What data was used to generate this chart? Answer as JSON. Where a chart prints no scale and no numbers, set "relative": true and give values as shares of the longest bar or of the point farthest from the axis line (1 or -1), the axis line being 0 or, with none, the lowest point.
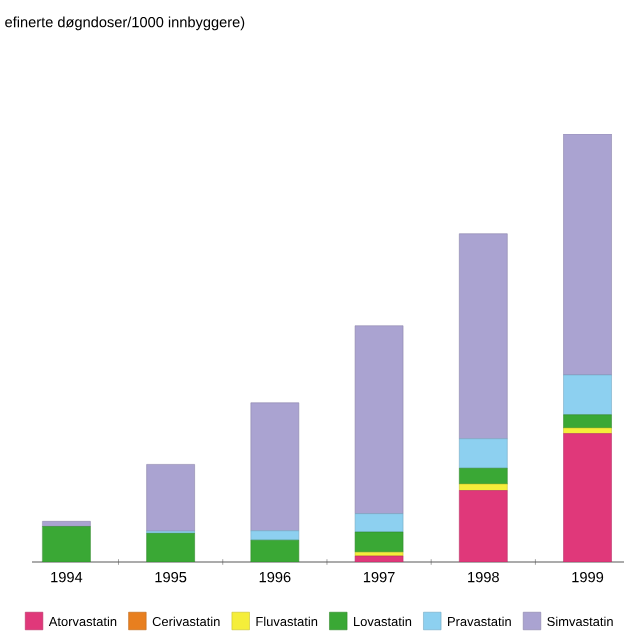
{
  "chart_data": {
    "type": "bar",
    "title": "efinerte døgndoser/1000 innbyggere)",
    "relative": true,
    "stacked": true,
    "legend": "bottom",
    "categories": [
      "1994",
      "1995",
      "1996",
      "1997",
      "1998",
      "1999"
    ],
    "series": [
      {
        "name": "Atorvastatin",
        "color": "#e0387a",
        "values": [
          0,
          0,
          0,
          0.014,
          0.167,
          0.3
        ]
      },
      {
        "name": "Cerivastatin",
        "color": "#e87f1f",
        "values": [
          0,
          0,
          0,
          0,
          0,
          0
        ]
      },
      {
        "name": "Fluvastatin",
        "color": "#f5ee3a",
        "values": [
          0,
          0,
          0,
          0.009,
          0.015,
          0.013
        ]
      },
      {
        "name": "Lovastatin",
        "color": "#3aa835",
        "values": [
          0.083,
          0.067,
          0.051,
          0.047,
          0.037,
          0.031
        ]
      },
      {
        "name": "Pravastatin",
        "color": "#8dd0f0",
        "values": [
          0,
          0.005,
          0.022,
          0.043,
          0.069,
          0.093
        ]
      },
      {
        "name": "Simvastatin",
        "color": "#aaa3d1",
        "values": [
          0.012,
          0.156,
          0.299,
          0.439,
          0.479,
          0.563
        ]
      }
    ]
  }
}
